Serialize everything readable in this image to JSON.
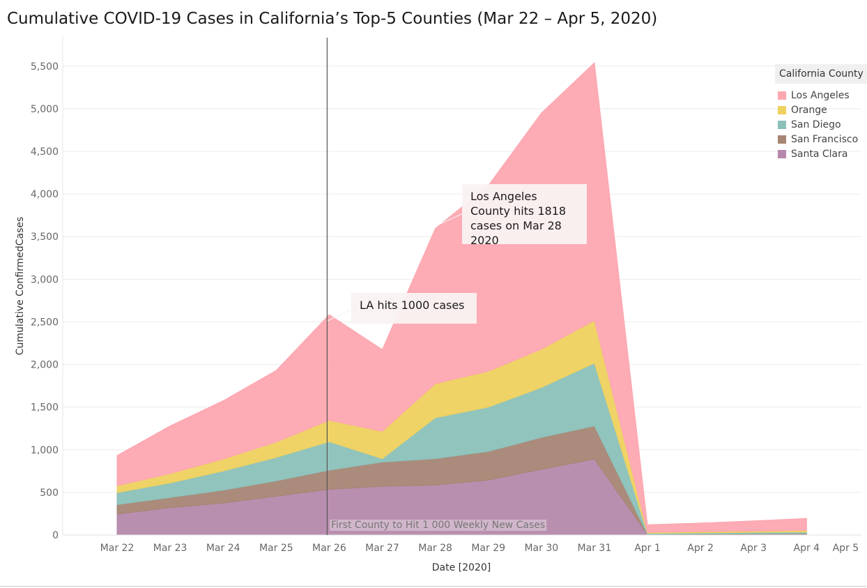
{
  "chart_data": {
    "type": "area",
    "stacked": true,
    "title": "Cumulative COVID-19 Cases in California’s Top-5 Counties (Mar 22 – Apr 5, 2020)",
    "xlabel": "Date [2020]",
    "ylabel": "Cumulative ConfirmedCases",
    "categories": [
      "Mar 22",
      "Mar 23",
      "Mar 24",
      "Mar 25",
      "Mar 26",
      "Mar 27",
      "Mar 28",
      "Mar 29",
      "Mar 30",
      "Mar 31",
      "Apr 1",
      "Apr 2",
      "Apr 3",
      "Apr 4",
      "Apr 5"
    ],
    "y_ticks": [
      0,
      500,
      1000,
      1500,
      2000,
      2500,
      3000,
      3500,
      4000,
      4500,
      5000,
      5500
    ],
    "y_tick_labels": [
      "0",
      "500",
      "1,000",
      "1,500",
      "2,000",
      "2,500",
      "3,000",
      "3,500",
      "4,000",
      "4,500",
      "5,000",
      "5,500"
    ],
    "ylim": [
      0,
      5850
    ],
    "grid": true,
    "legend_title": "California County",
    "legend_position": "top-right",
    "series": [
      {
        "name": "Santa Clara",
        "color": "#b589ac",
        "values": [
          245,
          320,
          375,
          455,
          535,
          570,
          585,
          645,
          770,
          890,
          5,
          8,
          10,
          12,
          null
        ]
      },
      {
        "name": "San Francisco",
        "color": "#a78574",
        "values": [
          112,
          120,
          150,
          180,
          225,
          285,
          310,
          335,
          375,
          390,
          3,
          4,
          5,
          5,
          null
        ]
      },
      {
        "name": "San Diego",
        "color": "#8bc1b9",
        "values": [
          140,
          170,
          225,
          275,
          335,
          40,
          480,
          520,
          585,
          735,
          12,
          13,
          15,
          18,
          null
        ]
      },
      {
        "name": "Orange",
        "color": "#eed15f",
        "values": [
          80,
          110,
          140,
          180,
          250,
          320,
          400,
          420,
          450,
          500,
          10,
          15,
          15,
          20,
          null
        ]
      },
      {
        "name": "Los Angeles",
        "color": "#fda7b0",
        "values": [
          355,
          560,
          685,
          840,
          1240,
          960,
          1820,
          2180,
          2770,
          3025,
          90,
          100,
          120,
          140,
          null
        ]
      }
    ],
    "reference_line": {
      "x": "Mar 26",
      "label": "First County to Hit 1 000 Weekly New Cases"
    },
    "annotations": [
      {
        "x": "Mar 26",
        "text": "LA hits 1000 cases"
      },
      {
        "x": "Mar 28",
        "text": "Los Angeles County hits 1818 cases on Mar 28 2020"
      }
    ]
  }
}
